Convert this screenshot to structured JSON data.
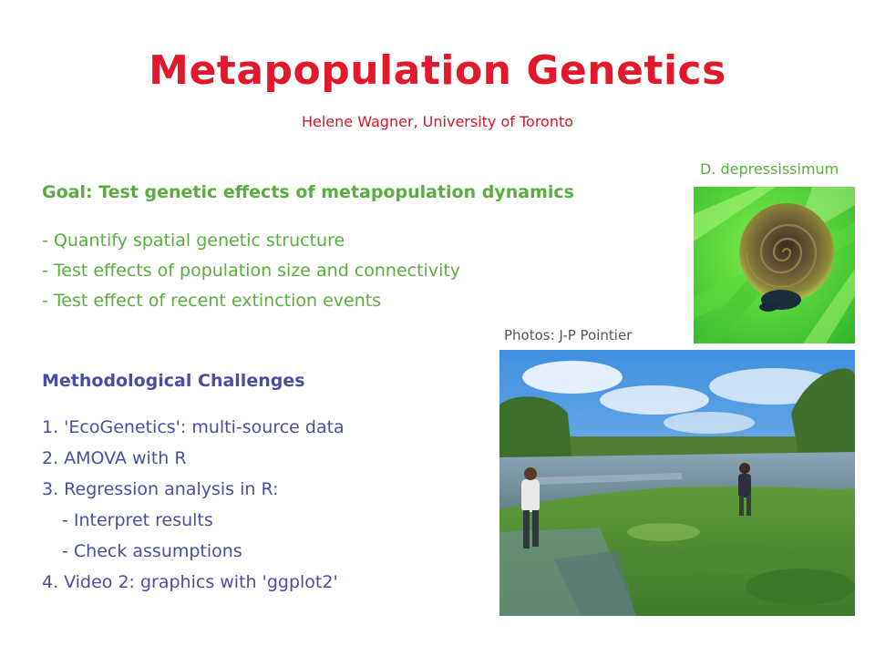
{
  "slide": {
    "title": "Metapopulation Genetics",
    "subtitle": "Helene Wagner, University of Toronto",
    "goal": {
      "heading": "Goal: Test genetic effects of metapopulation dynamics",
      "items": [
        "- Quantify spatial genetic structure",
        "- Test effects of population size and connectivity",
        "- Test effect of recent extinction events"
      ]
    },
    "methods": {
      "heading": "Methodological Challenges",
      "items": [
        "1. 'EcoGenetics': multi-source data",
        "2. AMOVA with R",
        "3. Regression analysis in R:",
        "- Interpret results",
        "- Check assumptions",
        "4. Video 2: graphics with 'ggplot2'"
      ]
    },
    "photos": {
      "species_label": "D. depressissimum",
      "credit": "Photos: J-P Pointier",
      "snail_icon": "snail-photo",
      "pond_icon": "pond-field-photo"
    },
    "colors": {
      "title": "#e0192c",
      "goal": "#5aad3f",
      "methods": "#4a4ea3"
    }
  }
}
